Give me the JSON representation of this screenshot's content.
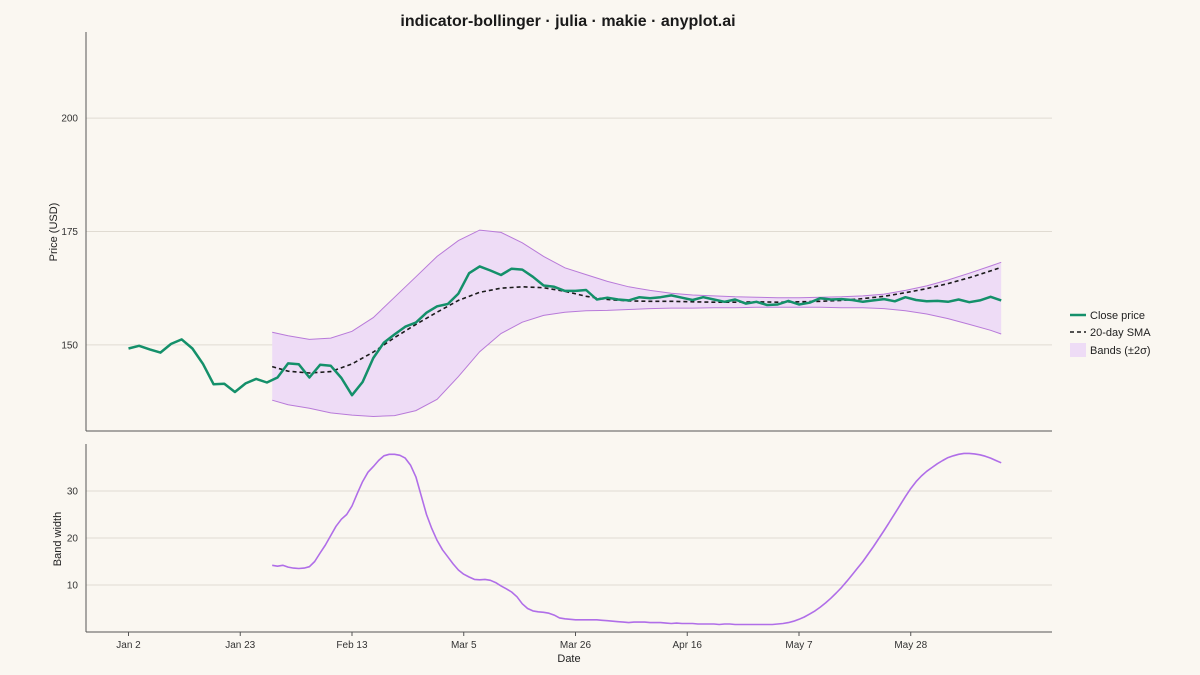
{
  "chart_data": {
    "type": "line",
    "title": "indicator-bollinger · julia · makie · anyplot.ai",
    "xlabel": "Date",
    "x_ticks": [
      "Jan 2",
      "Jan 23",
      "Feb 13",
      "Mar 5",
      "Mar 26",
      "Apr 16",
      "May 7",
      "May 28"
    ],
    "x_start": "Jan 2",
    "x_end_day": 164,
    "sma_start_day": 27,
    "grid": true,
    "legend_position": "right",
    "panels": [
      {
        "name": "price",
        "ylabel": "Price (USD)",
        "ylim": [
          131,
          219
        ],
        "yticks": [
          "150",
          "175",
          "200"
        ],
        "ytick_values": [
          150,
          175,
          200
        ]
      },
      {
        "name": "bandwidth",
        "ylabel": "Band width",
        "ylim": [
          0,
          40
        ],
        "yticks": [
          "10",
          "20",
          "30"
        ],
        "ytick_values": [
          10,
          20,
          30
        ]
      }
    ],
    "legend": [
      {
        "label": "Close price",
        "color": "#14906a",
        "style": "solid"
      },
      {
        "label": "20-day SMA",
        "color": "#1a1a1a",
        "style": "dashed"
      },
      {
        "label": "Bands (±2σ)",
        "color": "#eedcf6",
        "style": "fill"
      }
    ],
    "series": [
      {
        "name": "Close price",
        "color": "#14906a",
        "points": [
          [
            0,
            149.2
          ],
          [
            2,
            149.8
          ],
          [
            4,
            149
          ],
          [
            6,
            148.3
          ],
          [
            8,
            150.2
          ],
          [
            10,
            151.2
          ],
          [
            12,
            149.2
          ],
          [
            14,
            145.8
          ],
          [
            16,
            141.3
          ],
          [
            18,
            141.4
          ],
          [
            20,
            139.6
          ],
          [
            22,
            141.5
          ],
          [
            24,
            142.5
          ],
          [
            26,
            141.7
          ],
          [
            28,
            142.8
          ],
          [
            30,
            145.9
          ],
          [
            32,
            145.7
          ],
          [
            34,
            142.8
          ],
          [
            36,
            145.6
          ],
          [
            38,
            145.4
          ],
          [
            40,
            142.7
          ],
          [
            42,
            138.9
          ],
          [
            44,
            141.8
          ],
          [
            46,
            147.1
          ],
          [
            48,
            150.5
          ],
          [
            50,
            152.3
          ],
          [
            52,
            154
          ],
          [
            54,
            154.9
          ],
          [
            56,
            157.1
          ],
          [
            58,
            158.5
          ],
          [
            60,
            159
          ],
          [
            62,
            161.3
          ],
          [
            64,
            165.8
          ],
          [
            66,
            167.3
          ],
          [
            68,
            166.4
          ],
          [
            70,
            165.4
          ],
          [
            72,
            166.8
          ],
          [
            74,
            166.6
          ],
          [
            76,
            165
          ],
          [
            78,
            163.1
          ],
          [
            80,
            162.8
          ],
          [
            82,
            161.9
          ],
          [
            84,
            161.9
          ],
          [
            86,
            162.1
          ],
          [
            88,
            160
          ],
          [
            90,
            160.4
          ],
          [
            92,
            160
          ],
          [
            94,
            159.8
          ],
          [
            96,
            160.5
          ],
          [
            98,
            160.3
          ],
          [
            100,
            160.5
          ],
          [
            102,
            160.9
          ],
          [
            104,
            160.4
          ],
          [
            106,
            159.9
          ],
          [
            108,
            160.5
          ],
          [
            110,
            160
          ],
          [
            112,
            159.5
          ],
          [
            114,
            160
          ],
          [
            116,
            159.1
          ],
          [
            118,
            159.5
          ],
          [
            120,
            158.8
          ],
          [
            122,
            158.9
          ],
          [
            124,
            159.7
          ],
          [
            126,
            158.9
          ],
          [
            128,
            159.3
          ],
          [
            130,
            160.3
          ],
          [
            132,
            160
          ],
          [
            134,
            160.1
          ],
          [
            136,
            159.9
          ],
          [
            138,
            159.5
          ],
          [
            140,
            159.8
          ],
          [
            142,
            160.1
          ],
          [
            144,
            159.6
          ],
          [
            146,
            160.5
          ],
          [
            148,
            159.9
          ],
          [
            150,
            159.6
          ],
          [
            152,
            159.7
          ],
          [
            154,
            159.5
          ],
          [
            156,
            160
          ],
          [
            158,
            159.4
          ],
          [
            160,
            159.8
          ],
          [
            162,
            160.6
          ],
          [
            164,
            159.8
          ]
        ]
      },
      {
        "name": "20-day SMA",
        "color": "#1a1a1a",
        "points": [
          [
            27,
            145.2
          ],
          [
            30,
            144.2
          ],
          [
            34,
            143.8
          ],
          [
            38,
            144.1
          ],
          [
            42,
            145.8
          ],
          [
            46,
            148.4
          ],
          [
            50,
            151.6
          ],
          [
            54,
            154.5
          ],
          [
            58,
            157.2
          ],
          [
            62,
            159.8
          ],
          [
            66,
            161.6
          ],
          [
            70,
            162.5
          ],
          [
            74,
            162.8
          ],
          [
            78,
            162.6
          ],
          [
            82,
            161.8
          ],
          [
            86,
            160.7
          ],
          [
            90,
            160
          ],
          [
            94,
            159.7
          ],
          [
            98,
            159.6
          ],
          [
            102,
            159.6
          ],
          [
            106,
            159.5
          ],
          [
            110,
            159.4
          ],
          [
            114,
            159.4
          ],
          [
            118,
            159.5
          ],
          [
            122,
            159.4
          ],
          [
            126,
            159.5
          ],
          [
            130,
            159.6
          ],
          [
            134,
            159.8
          ],
          [
            138,
            160.2
          ],
          [
            142,
            160.7
          ],
          [
            146,
            161.5
          ],
          [
            150,
            162.4
          ],
          [
            154,
            163.5
          ],
          [
            158,
            164.8
          ],
          [
            162,
            166.3
          ],
          [
            164,
            167.1
          ]
        ]
      }
    ],
    "bands": {
      "name": "Bands (±2σ)",
      "color": "#eedcf6",
      "edge_color": "#b87ad9",
      "upper": [
        [
          27,
          152.8
        ],
        [
          30,
          152
        ],
        [
          34,
          151.2
        ],
        [
          38,
          151.5
        ],
        [
          42,
          153
        ],
        [
          46,
          156
        ],
        [
          50,
          160.5
        ],
        [
          54,
          165
        ],
        [
          58,
          169.5
        ],
        [
          62,
          173
        ],
        [
          66,
          175.3
        ],
        [
          70,
          174.8
        ],
        [
          74,
          172.5
        ],
        [
          78,
          169.5
        ],
        [
          82,
          167
        ],
        [
          86,
          165.5
        ],
        [
          90,
          164
        ],
        [
          94,
          162.8
        ],
        [
          98,
          162
        ],
        [
          102,
          161.4
        ],
        [
          106,
          161
        ],
        [
          110,
          160.8
        ],
        [
          114,
          160.6
        ],
        [
          118,
          160.5
        ],
        [
          122,
          160.4
        ],
        [
          126,
          160.4
        ],
        [
          130,
          160.5
        ],
        [
          134,
          160.6
        ],
        [
          138,
          160.8
        ],
        [
          142,
          161.2
        ],
        [
          146,
          162
        ],
        [
          150,
          163
        ],
        [
          154,
          164.3
        ],
        [
          158,
          165.8
        ],
        [
          162,
          167.4
        ],
        [
          164,
          168.2
        ]
      ],
      "lower": [
        [
          27,
          137.8
        ],
        [
          30,
          136.8
        ],
        [
          34,
          136
        ],
        [
          38,
          135
        ],
        [
          42,
          134.5
        ],
        [
          46,
          134.2
        ],
        [
          50,
          134.4
        ],
        [
          54,
          135.5
        ],
        [
          58,
          138
        ],
        [
          62,
          143
        ],
        [
          66,
          148.5
        ],
        [
          70,
          152.5
        ],
        [
          74,
          155
        ],
        [
          78,
          156.5
        ],
        [
          82,
          157.2
        ],
        [
          86,
          157.5
        ],
        [
          90,
          157.6
        ],
        [
          94,
          157.8
        ],
        [
          98,
          158
        ],
        [
          102,
          158.1
        ],
        [
          106,
          158.1
        ],
        [
          110,
          158.2
        ],
        [
          114,
          158.2
        ],
        [
          118,
          158.3
        ],
        [
          122,
          158.3
        ],
        [
          126,
          158.3
        ],
        [
          130,
          158.3
        ],
        [
          134,
          158.2
        ],
        [
          138,
          158.2
        ],
        [
          142,
          158
        ],
        [
          146,
          157.5
        ],
        [
          150,
          156.8
        ],
        [
          154,
          155.8
        ],
        [
          158,
          154.5
        ],
        [
          162,
          153.2
        ],
        [
          164,
          152.4
        ]
      ]
    },
    "bandwidth": {
      "name": "Band width",
      "color": "#b06ee8",
      "points": [
        [
          27,
          14.2
        ],
        [
          28,
          14
        ],
        [
          29,
          14.2
        ],
        [
          30,
          13.8
        ],
        [
          31,
          13.6
        ],
        [
          32,
          13.5
        ],
        [
          33,
          13.6
        ],
        [
          34,
          13.9
        ],
        [
          35,
          15
        ],
        [
          36,
          16.8
        ],
        [
          37,
          18.5
        ],
        [
          38,
          20.5
        ],
        [
          39,
          22.5
        ],
        [
          40,
          24
        ],
        [
          41,
          25
        ],
        [
          42,
          26.8
        ],
        [
          43,
          29.5
        ],
        [
          44,
          32
        ],
        [
          45,
          34
        ],
        [
          46,
          35.2
        ],
        [
          47,
          36.5
        ],
        [
          48,
          37.5
        ],
        [
          49,
          37.8
        ],
        [
          50,
          37.8
        ],
        [
          51,
          37.6
        ],
        [
          52,
          37
        ],
        [
          53,
          35.5
        ],
        [
          54,
          33
        ],
        [
          55,
          29
        ],
        [
          56,
          25
        ],
        [
          57,
          22
        ],
        [
          58,
          19.5
        ],
        [
          59,
          17.5
        ],
        [
          60,
          16
        ],
        [
          61,
          14.5
        ],
        [
          62,
          13.2
        ],
        [
          63,
          12.3
        ],
        [
          64,
          11.7
        ],
        [
          65,
          11.2
        ],
        [
          66,
          11.1
        ],
        [
          67,
          11.2
        ],
        [
          68,
          11
        ],
        [
          69,
          10.5
        ],
        [
          70,
          9.8
        ],
        [
          71,
          9.2
        ],
        [
          72,
          8.5
        ],
        [
          73,
          7.5
        ],
        [
          74,
          6
        ],
        [
          75,
          5
        ],
        [
          76,
          4.5
        ],
        [
          77,
          4.3
        ],
        [
          78,
          4.2
        ],
        [
          79,
          4
        ],
        [
          80,
          3.6
        ],
        [
          81,
          3
        ],
        [
          82,
          2.8
        ],
        [
          83,
          2.7
        ],
        [
          84,
          2.6
        ],
        [
          85,
          2.6
        ],
        [
          86,
          2.6
        ],
        [
          87,
          2.6
        ],
        [
          88,
          2.6
        ],
        [
          89,
          2.5
        ],
        [
          90,
          2.4
        ],
        [
          91,
          2.3
        ],
        [
          92,
          2.2
        ],
        [
          93,
          2.1
        ],
        [
          94,
          2
        ],
        [
          95,
          2.1
        ],
        [
          96,
          2.1
        ],
        [
          97,
          2.1
        ],
        [
          98,
          2
        ],
        [
          99,
          2
        ],
        [
          100,
          2
        ],
        [
          101,
          1.9
        ],
        [
          102,
          1.8
        ],
        [
          103,
          1.9
        ],
        [
          104,
          1.8
        ],
        [
          105,
          1.8
        ],
        [
          106,
          1.8
        ],
        [
          107,
          1.7
        ],
        [
          108,
          1.7
        ],
        [
          109,
          1.7
        ],
        [
          110,
          1.7
        ],
        [
          111,
          1.6
        ],
        [
          112,
          1.7
        ],
        [
          113,
          1.7
        ],
        [
          114,
          1.6
        ],
        [
          115,
          1.6
        ],
        [
          116,
          1.6
        ],
        [
          117,
          1.6
        ],
        [
          118,
          1.6
        ],
        [
          119,
          1.6
        ],
        [
          120,
          1.6
        ],
        [
          121,
          1.6
        ],
        [
          122,
          1.7
        ],
        [
          123,
          1.8
        ],
        [
          124,
          2
        ],
        [
          125,
          2.3
        ],
        [
          126,
          2.7
        ],
        [
          127,
          3.2
        ],
        [
          128,
          3.8
        ],
        [
          129,
          4.5
        ],
        [
          130,
          5.3
        ],
        [
          131,
          6.2
        ],
        [
          132,
          7.2
        ],
        [
          133,
          8.3
        ],
        [
          134,
          9.5
        ],
        [
          135,
          10.8
        ],
        [
          136,
          12.2
        ],
        [
          137,
          13.6
        ],
        [
          138,
          15
        ],
        [
          139,
          16.6
        ],
        [
          140,
          18.2
        ],
        [
          141,
          19.9
        ],
        [
          142,
          21.6
        ],
        [
          143,
          23.4
        ],
        [
          144,
          25.2
        ],
        [
          145,
          27
        ],
        [
          146,
          28.8
        ],
        [
          147,
          30.5
        ],
        [
          148,
          32
        ],
        [
          149,
          33.2
        ],
        [
          150,
          34.2
        ],
        [
          151,
          35
        ],
        [
          152,
          35.8
        ],
        [
          153,
          36.5
        ],
        [
          154,
          37.1
        ],
        [
          155,
          37.5
        ],
        [
          156,
          37.8
        ],
        [
          157,
          38
        ],
        [
          158,
          38
        ],
        [
          159,
          37.9
        ],
        [
          160,
          37.7
        ],
        [
          161,
          37.4
        ],
        [
          162,
          37
        ],
        [
          163,
          36.5
        ],
        [
          164,
          36
        ]
      ]
    }
  }
}
